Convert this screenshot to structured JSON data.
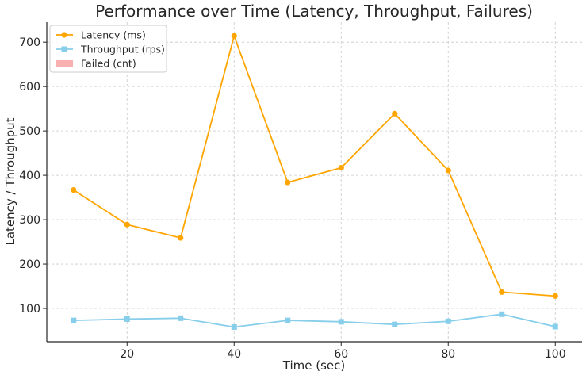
{
  "chart_data": {
    "type": "line",
    "title": "Performance over Time (Latency, Throughput, Failures)",
    "xlabel": "Time (sec)",
    "ylabel": "Latency / Throughput",
    "xlim": [
      5,
      105
    ],
    "ylim": [
      25,
      745
    ],
    "x_ticks": [
      20,
      40,
      60,
      80,
      100
    ],
    "y_ticks": [
      100,
      200,
      300,
      400,
      500,
      600,
      700
    ],
    "grid": true,
    "legend_position": "top-left",
    "x": [
      10,
      20,
      30,
      40,
      50,
      60,
      70,
      80,
      90,
      100
    ],
    "series": [
      {
        "name": "Latency (ms)",
        "type": "line",
        "marker": "circle",
        "color": "#FFA500",
        "values": [
          367,
          289,
          259,
          714,
          384,
          417,
          539,
          411,
          137,
          128
        ]
      },
      {
        "name": "Throughput (rps)",
        "type": "line",
        "marker": "square",
        "color": "#87CEEB",
        "values": [
          73,
          76,
          78,
          58,
          73,
          70,
          64,
          71,
          87,
          59
        ]
      },
      {
        "name": "Failed (cnt)",
        "type": "bar",
        "color": "#F8B0B0",
        "values": [
          0,
          0,
          0,
          0,
          0,
          0,
          0,
          0,
          0,
          0
        ]
      }
    ]
  }
}
